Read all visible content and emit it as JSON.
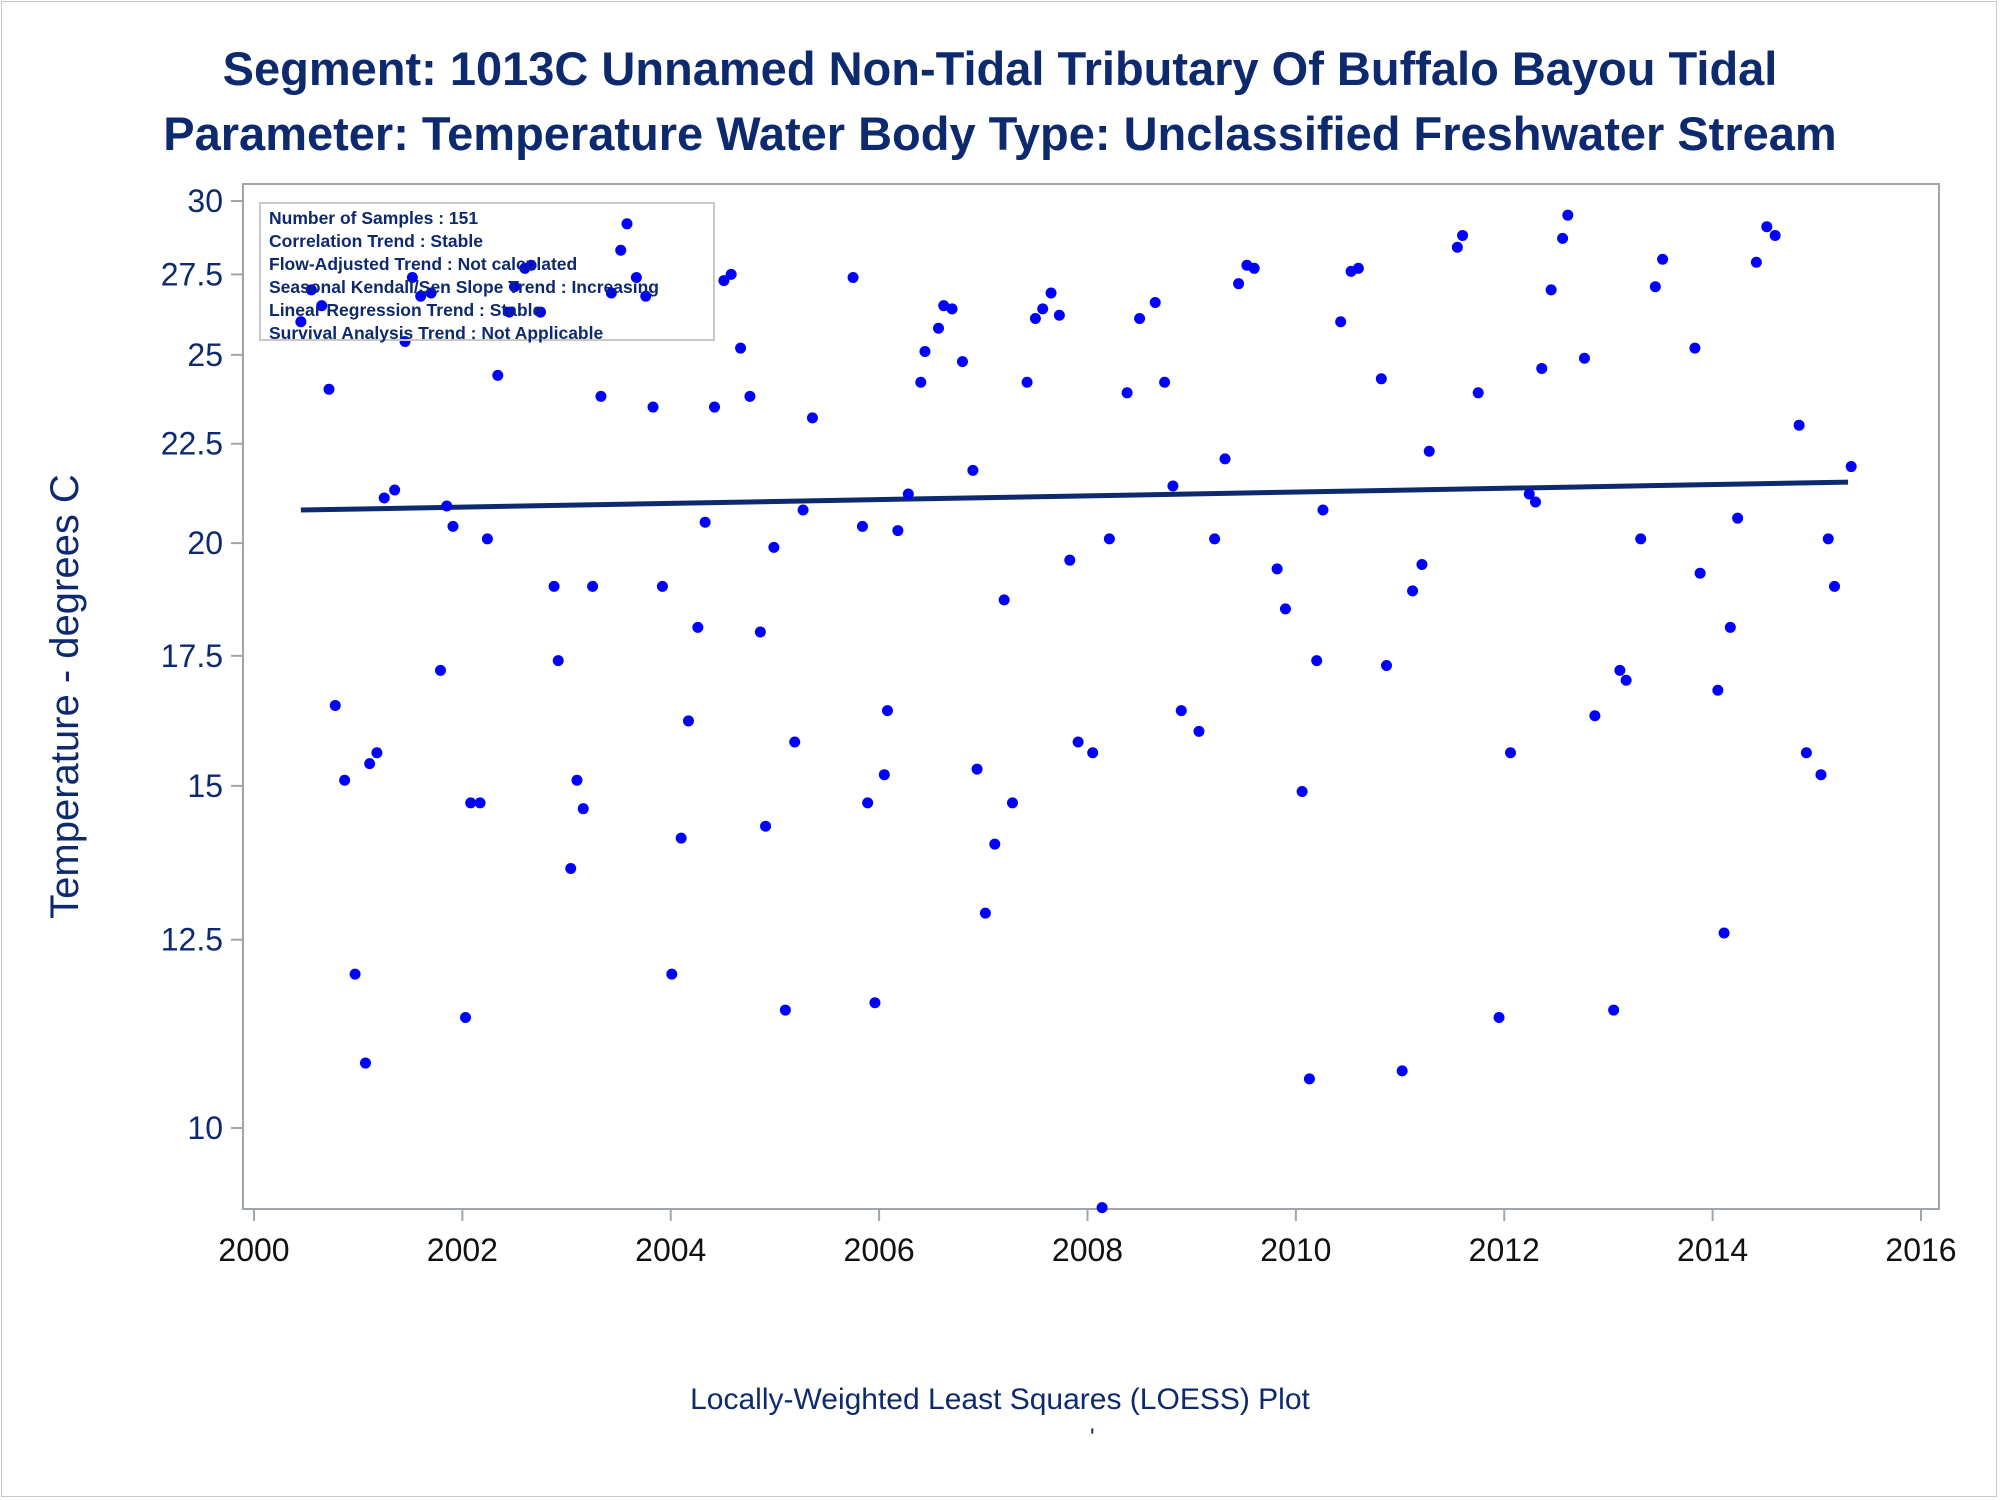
{
  "title_line1": "Segment: 1013C  Unnamed Non-Tidal Tributary Of Buffalo Bayou Tidal",
  "title_line2": "Parameter: Temperature   Water Body Type: Unclassified Freshwater Stream",
  "footnote": "Locally-Weighted Least Squares (LOESS) Plot",
  "footnote_mark": "'",
  "inset": [
    "Number of Samples : 151",
    "Correlation Trend : Stable",
    "Flow-Adjusted Trend : Not calculated",
    "Seasonal Kendall/Sen Slope Trend : Increasing",
    "Linear Regression Trend : Stable",
    "Survival Analysis Trend : Not Applicable"
  ],
  "colors": {
    "text": "#0e2a6e",
    "points": "#0000ff",
    "trend_line": "#0e2a6e",
    "axis": "#a0a4ac"
  },
  "chart_data": {
    "type": "scatter",
    "title": "Segment: 1013C  Unnamed Non-Tidal Tributary Of Buffalo Bayou Tidal / Parameter: Temperature   Water Body Type: Unclassified Freshwater Stream",
    "xlabel": "",
    "ylabel": "Temperature - degrees C",
    "y_scale": "log",
    "xlim": [
      2000,
      2016
    ],
    "ylim": [
      8.9,
      30
    ],
    "x_ticks": [
      2000,
      2002,
      2004,
      2006,
      2008,
      2010,
      2012,
      2014,
      2016
    ],
    "x_tick_labels": [
      "2000",
      "2002",
      "2004",
      "2006",
      "2008",
      "2010",
      "2012",
      "2014",
      "2016"
    ],
    "y_ticks": [
      10,
      12.5,
      15,
      17.5,
      20,
      22.5,
      25,
      27.5,
      30
    ],
    "y_tick_labels": [
      "10",
      "12.5",
      "15",
      "17.5",
      "20",
      "22.5",
      "25",
      "27.5",
      "30"
    ],
    "grid": false,
    "legend": "none",
    "trend_line": {
      "x": [
        2000.45,
        2015.3
      ],
      "y": [
        20.8,
        21.5
      ]
    },
    "points": [
      [
        2000.45,
        26.0
      ],
      [
        2000.55,
        27.0
      ],
      [
        2000.65,
        26.5
      ],
      [
        2000.72,
        24.0
      ],
      [
        2000.78,
        16.5
      ],
      [
        2000.87,
        15.1
      ],
      [
        2000.97,
        12.0
      ],
      [
        2001.07,
        10.8
      ],
      [
        2001.11,
        15.4
      ],
      [
        2001.18,
        15.6
      ],
      [
        2001.25,
        21.1
      ],
      [
        2001.35,
        21.3
      ],
      [
        2001.45,
        25.4
      ],
      [
        2001.52,
        27.4
      ],
      [
        2001.6,
        26.8
      ],
      [
        2001.7,
        26.9
      ],
      [
        2001.79,
        17.2
      ],
      [
        2001.85,
        20.9
      ],
      [
        2001.91,
        20.4
      ],
      [
        2002.03,
        11.4
      ],
      [
        2002.08,
        14.7
      ],
      [
        2002.17,
        14.7
      ],
      [
        2002.24,
        20.1
      ],
      [
        2002.34,
        24.4
      ],
      [
        2002.45,
        26.3
      ],
      [
        2002.5,
        27.1
      ],
      [
        2002.6,
        27.7
      ],
      [
        2002.66,
        27.8
      ],
      [
        2002.75,
        26.3
      ],
      [
        2002.88,
        19.0
      ],
      [
        2002.92,
        17.4
      ],
      [
        2003.04,
        13.6
      ],
      [
        2003.1,
        15.1
      ],
      [
        2003.16,
        14.6
      ],
      [
        2003.25,
        19.0
      ],
      [
        2003.33,
        23.8
      ],
      [
        2003.43,
        26.9
      ],
      [
        2003.52,
        28.3
      ],
      [
        2003.58,
        29.2
      ],
      [
        2003.67,
        27.4
      ],
      [
        2003.76,
        26.8
      ],
      [
        2003.83,
        23.5
      ],
      [
        2003.92,
        19.0
      ],
      [
        2004.01,
        12.0
      ],
      [
        2004.1,
        14.1
      ],
      [
        2004.17,
        16.2
      ],
      [
        2004.26,
        18.1
      ],
      [
        2004.33,
        20.5
      ],
      [
        2004.42,
        23.5
      ],
      [
        2004.51,
        27.3
      ],
      [
        2004.58,
        27.5
      ],
      [
        2004.67,
        25.2
      ],
      [
        2004.76,
        23.8
      ],
      [
        2004.86,
        18.0
      ],
      [
        2004.91,
        14.3
      ],
      [
        2004.99,
        19.9
      ],
      [
        2005.1,
        11.5
      ],
      [
        2005.19,
        15.8
      ],
      [
        2005.27,
        20.8
      ],
      [
        2005.36,
        23.2
      ],
      [
        2005.75,
        27.4
      ],
      [
        2005.84,
        20.4
      ],
      [
        2005.89,
        14.7
      ],
      [
        2005.96,
        11.6
      ],
      [
        2006.05,
        15.2
      ],
      [
        2006.08,
        16.4
      ],
      [
        2006.18,
        20.3
      ],
      [
        2006.28,
        21.2
      ],
      [
        2006.4,
        24.2
      ],
      [
        2006.44,
        25.1
      ],
      [
        2006.57,
        25.8
      ],
      [
        2006.62,
        26.5
      ],
      [
        2006.7,
        26.4
      ],
      [
        2006.8,
        24.8
      ],
      [
        2006.9,
        21.8
      ],
      [
        2006.94,
        15.3
      ],
      [
        2007.02,
        12.9
      ],
      [
        2007.11,
        14.0
      ],
      [
        2007.2,
        18.7
      ],
      [
        2007.28,
        14.7
      ],
      [
        2007.42,
        24.2
      ],
      [
        2007.5,
        26.1
      ],
      [
        2007.57,
        26.4
      ],
      [
        2007.65,
        26.9
      ],
      [
        2007.73,
        26.2
      ],
      [
        2007.83,
        19.6
      ],
      [
        2007.91,
        15.8
      ],
      [
        2008.05,
        15.6
      ],
      [
        2008.14,
        9.1
      ],
      [
        2008.21,
        20.1
      ],
      [
        2008.38,
        23.9
      ],
      [
        2008.5,
        26.1
      ],
      [
        2008.65,
        26.6
      ],
      [
        2008.74,
        24.2
      ],
      [
        2008.82,
        21.4
      ],
      [
        2008.9,
        16.4
      ],
      [
        2009.07,
        16.0
      ],
      [
        2009.22,
        20.1
      ],
      [
        2009.32,
        22.1
      ],
      [
        2009.45,
        27.2
      ],
      [
        2009.53,
        27.8
      ],
      [
        2009.6,
        27.7
      ],
      [
        2009.82,
        19.4
      ],
      [
        2009.9,
        18.5
      ],
      [
        2010.06,
        14.9
      ],
      [
        2010.13,
        10.6
      ],
      [
        2010.2,
        17.4
      ],
      [
        2010.26,
        20.8
      ],
      [
        2010.43,
        26.0
      ],
      [
        2010.53,
        27.6
      ],
      [
        2010.6,
        27.7
      ],
      [
        2010.82,
        24.3
      ],
      [
        2010.87,
        17.3
      ],
      [
        2011.02,
        10.7
      ],
      [
        2011.12,
        18.9
      ],
      [
        2011.21,
        19.5
      ],
      [
        2011.28,
        22.3
      ],
      [
        2011.55,
        28.4
      ],
      [
        2011.6,
        28.8
      ],
      [
        2011.75,
        23.9
      ],
      [
        2011.95,
        11.4
      ],
      [
        2012.06,
        15.6
      ],
      [
        2012.24,
        21.2
      ],
      [
        2012.3,
        21.0
      ],
      [
        2012.36,
        24.6
      ],
      [
        2012.45,
        27.0
      ],
      [
        2012.56,
        28.7
      ],
      [
        2012.61,
        29.5
      ],
      [
        2012.77,
        24.9
      ],
      [
        2012.87,
        16.3
      ],
      [
        2013.05,
        11.5
      ],
      [
        2013.11,
        17.2
      ],
      [
        2013.17,
        17.0
      ],
      [
        2013.31,
        20.1
      ],
      [
        2013.45,
        27.1
      ],
      [
        2013.52,
        28.0
      ],
      [
        2013.83,
        25.2
      ],
      [
        2013.88,
        19.3
      ],
      [
        2014.05,
        16.8
      ],
      [
        2014.11,
        12.6
      ],
      [
        2014.17,
        18.1
      ],
      [
        2014.24,
        20.6
      ],
      [
        2014.42,
        27.9
      ],
      [
        2014.52,
        29.1
      ],
      [
        2014.6,
        28.8
      ],
      [
        2014.83,
        23.0
      ],
      [
        2014.9,
        15.6
      ],
      [
        2015.04,
        15.2
      ],
      [
        2015.11,
        20.1
      ],
      [
        2015.17,
        19.0
      ],
      [
        2015.33,
        21.9
      ]
    ]
  }
}
